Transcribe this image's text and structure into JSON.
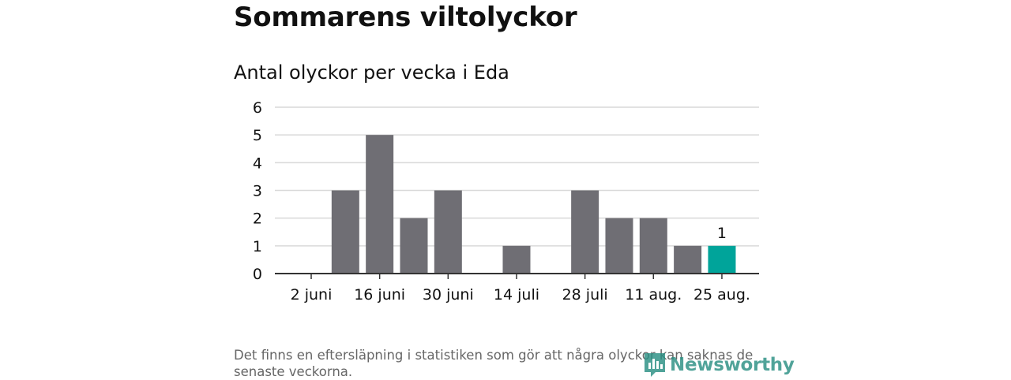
{
  "title": "Sommarens viltolyckor",
  "subtitle": "Antal olyckor per vecka i Eda",
  "footnote": "Det finns en eftersläpning i statistiken som gör att några olyckor kan saknas de senaste veckorna.",
  "brand": {
    "name": "Newsworthy",
    "icon": "newsworthy-logo-icon",
    "color": "#2a8f83"
  },
  "colors": {
    "bar": "#6f6e74",
    "highlight": "#00a49a",
    "grid": "#d9d9d9",
    "axis": "#333333"
  },
  "chart_data": {
    "type": "bar",
    "title": "Antal olyckor per vecka i Eda",
    "xlabel": "",
    "ylabel": "",
    "categories": [
      "2 juni",
      "9 juni",
      "16 juni",
      "23 juni",
      "30 juni",
      "7 juli",
      "14 juli",
      "21 juli",
      "28 juli",
      "4 aug.",
      "11 aug.",
      "18 aug.",
      "25 aug."
    ],
    "values": [
      0,
      3,
      5,
      2,
      3,
      0,
      1,
      0,
      3,
      2,
      2,
      1,
      1
    ],
    "tick_labels": [
      "2 juni",
      "16 juni",
      "30 juni",
      "14 juli",
      "28 juli",
      "11 aug.",
      "25 aug."
    ],
    "yticks": [
      0,
      1,
      2,
      3,
      4,
      5,
      6
    ],
    "ylim": [
      0,
      6
    ],
    "highlight_index": 12,
    "data_labels": [
      {
        "index": 12,
        "text": "1"
      }
    ],
    "grid": true,
    "legend": "none"
  }
}
